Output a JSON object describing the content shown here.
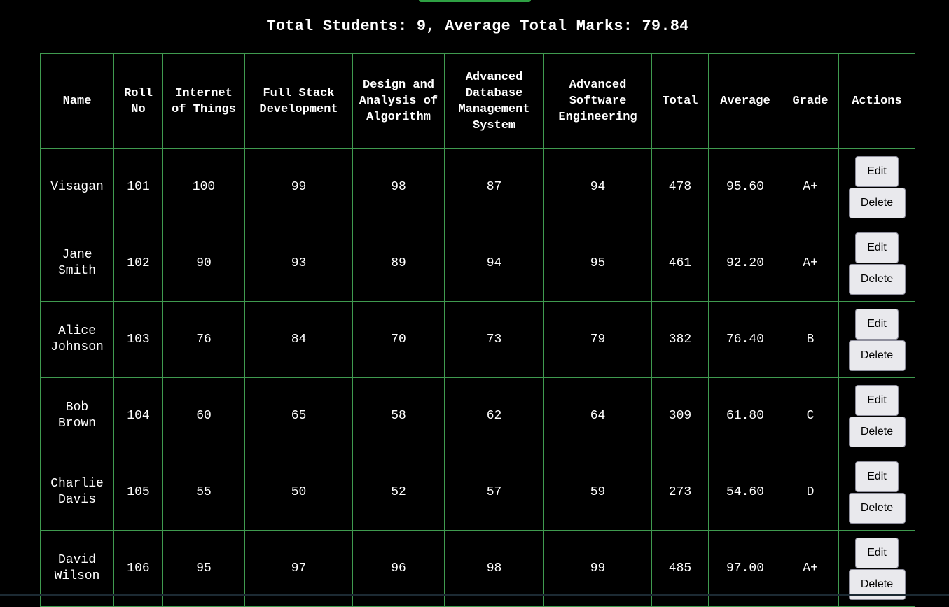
{
  "summary": {
    "text": "Total Students: 9, Average Total Marks: 79.84"
  },
  "table": {
    "headers": [
      "Name",
      "Roll No",
      "Internet of Things",
      "Full Stack Development",
      "Design and Analysis of Algorithm",
      "Advanced Database Management System",
      "Advanced Software Engineering",
      "Total",
      "Average",
      "Grade",
      "Actions"
    ],
    "rows": [
      {
        "name": "Visagan",
        "roll": "101",
        "m1": "100",
        "m2": "99",
        "m3": "98",
        "m4": "87",
        "m5": "94",
        "total": "478",
        "avg": "95.60",
        "grade": "A+"
      },
      {
        "name": "Jane Smith",
        "roll": "102",
        "m1": "90",
        "m2": "93",
        "m3": "89",
        "m4": "94",
        "m5": "95",
        "total": "461",
        "avg": "92.20",
        "grade": "A+"
      },
      {
        "name": "Alice Johnson",
        "roll": "103",
        "m1": "76",
        "m2": "84",
        "m3": "70",
        "m4": "73",
        "m5": "79",
        "total": "382",
        "avg": "76.40",
        "grade": "B"
      },
      {
        "name": "Bob Brown",
        "roll": "104",
        "m1": "60",
        "m2": "65",
        "m3": "58",
        "m4": "62",
        "m5": "64",
        "total": "309",
        "avg": "61.80",
        "grade": "C"
      },
      {
        "name": "Charlie Davis",
        "roll": "105",
        "m1": "55",
        "m2": "50",
        "m3": "52",
        "m4": "57",
        "m5": "59",
        "total": "273",
        "avg": "54.60",
        "grade": "D"
      },
      {
        "name": "David Wilson",
        "roll": "106",
        "m1": "95",
        "m2": "97",
        "m3": "96",
        "m4": "98",
        "m5": "99",
        "total": "485",
        "avg": "97.00",
        "grade": "A+"
      }
    ],
    "edit_label": "Edit",
    "delete_label": "Delete"
  },
  "colors": {
    "background": "#000000",
    "grid": "#3f9a4f",
    "accent": "#2ea043",
    "button_bg": "#e9e9ed"
  }
}
